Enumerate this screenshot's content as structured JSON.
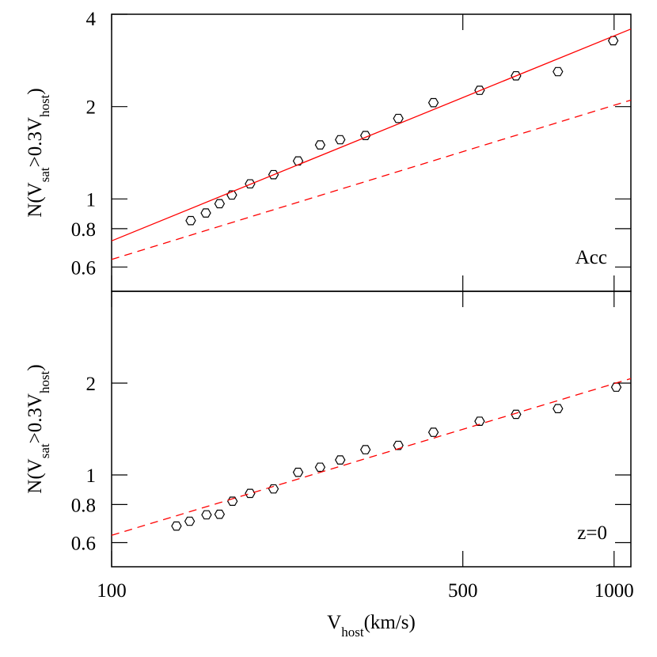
{
  "chart_data": [
    {
      "type": "scatter",
      "xscale": "log",
      "yscale": "log",
      "xlim": [
        100,
        1080
      ],
      "ylim": [
        0.5,
        4
      ],
      "yticks": [
        0.6,
        0.8,
        1,
        2,
        4
      ],
      "y_label_parts": [
        "N(V",
        "sat",
        ">0.3V",
        "host",
        ")"
      ],
      "annotation": "Acc",
      "series": [
        {
          "style": "marker",
          "color": "#000000",
          "x": [
            143.7,
            154,
            164,
            173.5,
            188.6,
            210,
            235,
            260,
            285,
            320,
            372,
            437,
            540,
            638,
            773,
            996
          ],
          "values": [
            0.85,
            0.9,
            0.965,
            1.03,
            1.12,
            1.2,
            1.33,
            1.5,
            1.56,
            1.61,
            1.83,
            2.06,
            2.26,
            2.52,
            2.6,
            3.28
          ]
        },
        {
          "style": "solid",
          "color": "#ff0000",
          "x": [
            100,
            1080
          ],
          "values": [
            0.73,
            3.58
          ]
        },
        {
          "style": "dashed",
          "color": "#ff0000",
          "x": [
            100,
            1080
          ],
          "values": [
            0.635,
            2.1
          ]
        }
      ]
    },
    {
      "type": "scatter",
      "xscale": "log",
      "yscale": "log",
      "xlim": [
        100,
        1080
      ],
      "ylim": [
        0.5,
        4
      ],
      "xticks": [
        100,
        500,
        1000
      ],
      "yticks": [
        0.6,
        0.8,
        1,
        2
      ],
      "x_label_parts": [
        "V",
        "host",
        "(km/s)"
      ],
      "y_label_parts": [
        "N(V",
        "sat",
        ">0.3V",
        "host",
        ")"
      ],
      "annotation": "z=0",
      "series": [
        {
          "style": "marker",
          "color": "#000000",
          "x": [
            134.6,
            143,
            154.5,
            164,
            174,
            188.6,
            210,
            235,
            260,
            285,
            320,
            372,
            437,
            540,
            638,
            773,
            1010
          ],
          "values": [
            0.68,
            0.705,
            0.74,
            0.743,
            0.82,
            0.87,
            0.9,
            1.02,
            1.06,
            1.12,
            1.21,
            1.25,
            1.38,
            1.5,
            1.58,
            1.65,
            1.94
          ]
        },
        {
          "style": "dashed",
          "color": "#ff0000",
          "x": [
            100,
            1080
          ],
          "values": [
            0.634,
            2.07
          ]
        }
      ]
    }
  ]
}
